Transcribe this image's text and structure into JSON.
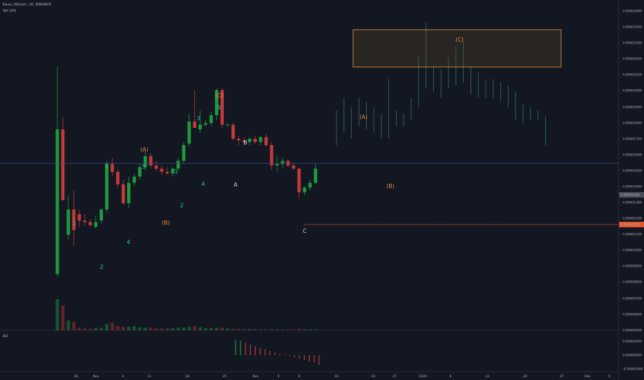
{
  "header": {
    "symbol_line": "Kava / Bitcoin, 1D, BINANCE",
    "volume_label": "Vol (20)",
    "ao_label": "AO"
  },
  "colors": {
    "background": "#131722",
    "grid": "#1f2433",
    "up": "#26a69a",
    "up_body": "#1e9a3c",
    "down": "#c23a3a",
    "forecast": "#2a6b6b",
    "label_teal": "#2ec4b6",
    "label_orange": "#e8893a",
    "label_white": "#d1d4dc",
    "price_line_blue": "#3a4a8a",
    "support_orange": "#e2562a"
  },
  "chart_data": {
    "type": "candlestick",
    "price_axis": {
      "ticks": [
        "0.00003400",
        "0.00003300",
        "0.00002300",
        "0.00002200",
        "0.00002100",
        "0.00002000",
        "0.00001900",
        "0.00001800",
        "0.00001700",
        "0.00001600",
        "0.00001500",
        "0.00001400",
        "0.00001300",
        "0.00001200",
        "0.00001100",
        "0.00001000",
        "0.00000900",
        "0.00000800",
        "0.00000700",
        "0.00000600",
        "0.00000500"
      ],
      "current_price_label": "0.00001284",
      "support_price_label": "0.00001073",
      "current_price": 1.284e-05,
      "support_price": 1.073e-05
    },
    "time_axis": {
      "ticks": [
        "28",
        "Nov",
        "4",
        "11",
        "18",
        "25",
        "Dec",
        "5",
        "9",
        "16",
        "23",
        "27",
        "2020",
        "6",
        "13",
        "20",
        "27",
        "Feb",
        "5"
      ]
    },
    "candles": [
      {
        "o": 5.8e-06,
        "h": 1.9e-05,
        "l": 5.6e-06,
        "c": 1.5e-05
      },
      {
        "o": 1.5e-05,
        "h": 1.58e-05,
        "l": 1.05e-05,
        "c": 1.05e-05
      },
      {
        "o": 8.3e-06,
        "h": 1.08e-05,
        "l": 8e-06,
        "c": 9.9e-06
      },
      {
        "o": 9.9e-06,
        "h": 1.11e-05,
        "l": 7.6e-06,
        "c": 8.6e-06
      },
      {
        "o": 9.6e-06,
        "h": 9.9e-06,
        "l": 8.8e-06,
        "c": 9.2e-06
      },
      {
        "o": 9.2e-06,
        "h": 9.6e-06,
        "l": 8.9e-06,
        "c": 9.1e-06
      },
      {
        "o": 9.1e-06,
        "h": 9.3e-06,
        "l": 8.8e-06,
        "c": 8.9e-06
      },
      {
        "o": 8.8e-06,
        "h": 9.5e-06,
        "l": 8.7e-06,
        "c": 9.1e-06
      },
      {
        "o": 9.2e-06,
        "h": 1e-05,
        "l": 9e-06,
        "c": 9.9e-06
      },
      {
        "o": 9.9e-06,
        "h": 1.3e-05,
        "l": 9.7e-06,
        "c": 1.28e-05
      },
      {
        "o": 1.28e-05,
        "h": 1.32e-05,
        "l": 1.2e-05,
        "c": 1.23e-05
      },
      {
        "o": 1.23e-05,
        "h": 1.25e-05,
        "l": 1.13e-05,
        "c": 1.15e-05
      },
      {
        "o": 1.15e-05,
        "h": 1.18e-05,
        "l": 1.02e-05,
        "c": 1.03e-05
      },
      {
        "o": 1.03e-05,
        "h": 1.2e-05,
        "l": 1e-05,
        "c": 1.16e-05
      },
      {
        "o": 1.16e-05,
        "h": 1.22e-05,
        "l": 1.14e-05,
        "c": 1.2e-05
      },
      {
        "o": 1.2e-05,
        "h": 1.28e-05,
        "l": 1.18e-05,
        "c": 1.26e-05
      },
      {
        "o": 1.26e-05,
        "h": 1.36e-05,
        "l": 1.24e-05,
        "c": 1.33e-05
      },
      {
        "o": 1.33e-05,
        "h": 1.35e-05,
        "l": 1.25e-05,
        "c": 1.27e-05
      },
      {
        "o": 1.27e-05,
        "h": 1.3e-05,
        "l": 1.23e-05,
        "c": 1.25e-05
      },
      {
        "o": 1.25e-05,
        "h": 1.27e-05,
        "l": 1.21e-05,
        "c": 1.23e-05
      },
      {
        "o": 1.23e-05,
        "h": 1.26e-05,
        "l": 1.21e-05,
        "c": 1.22e-05
      },
      {
        "o": 1.22e-05,
        "h": 1.26e-05,
        "l": 1.2e-05,
        "c": 1.25e-05
      },
      {
        "o": 1.25e-05,
        "h": 1.32e-05,
        "l": 1.23e-05,
        "c": 1.3e-05
      },
      {
        "o": 1.3e-05,
        "h": 1.42e-05,
        "l": 1.28e-05,
        "c": 1.4e-05
      },
      {
        "o": 1.41e-05,
        "h": 1.6e-05,
        "l": 1.39e-05,
        "c": 1.55e-05
      },
      {
        "o": 1.55e-05,
        "h": 1.75e-05,
        "l": 1.52e-05,
        "c": 1.51e-05
      },
      {
        "o": 1.5e-05,
        "h": 1.62e-05,
        "l": 1.48e-05,
        "c": 1.53e-05
      },
      {
        "o": 1.53e-05,
        "h": 1.56e-05,
        "l": 1.52e-05,
        "c": 1.54e-05
      },
      {
        "o": 1.54e-05,
        "h": 1.61e-05,
        "l": 1.52e-05,
        "c": 1.59e-05
      },
      {
        "o": 1.59e-05,
        "h": 1.76e-05,
        "l": 1.56e-05,
        "c": 1.75e-05
      },
      {
        "o": 1.75e-05,
        "h": 1.76e-05,
        "l": 1.51e-05,
        "c": 1.53e-05
      },
      {
        "o": 1.53e-05,
        "h": 1.54e-05,
        "l": 1.52e-05,
        "c": 1.53e-05
      },
      {
        "o": 1.53e-05,
        "h": 1.54e-05,
        "l": 1.43e-05,
        "c": 1.44e-05
      },
      {
        "o": 1.44e-05,
        "h": 1.46e-05,
        "l": 1.4e-05,
        "c": 1.43e-05
      },
      {
        "o": 1.43e-05,
        "h": 1.45e-05,
        "l": 1.4e-05,
        "c": 1.42e-05
      },
      {
        "o": 1.42e-05,
        "h": 1.45e-05,
        "l": 1.4e-05,
        "c": 1.44e-05
      },
      {
        "o": 1.44e-05,
        "h": 1.46e-05,
        "l": 1.41e-05,
        "c": 1.42e-05
      },
      {
        "o": 1.42e-05,
        "h": 1.46e-05,
        "l": 1.4e-05,
        "c": 1.45e-05
      },
      {
        "o": 1.45e-05,
        "h": 1.47e-05,
        "l": 1.39e-05,
        "c": 1.4e-05
      },
      {
        "o": 1.4e-05,
        "h": 1.42e-05,
        "l": 1.24e-05,
        "c": 1.27e-05
      },
      {
        "o": 1.27e-05,
        "h": 1.33e-05,
        "l": 1.23e-05,
        "c": 1.28e-05
      },
      {
        "o": 1.28e-05,
        "h": 1.32e-05,
        "l": 1.25e-05,
        "c": 1.3e-05
      },
      {
        "o": 1.3e-05,
        "h": 1.31e-05,
        "l": 1.26e-05,
        "c": 1.27e-05
      },
      {
        "o": 1.27e-05,
        "h": 1.29e-05,
        "l": 1.24e-05,
        "c": 1.25e-05
      },
      {
        "o": 1.25e-05,
        "h": 1.26e-05,
        "l": 1.06e-05,
        "c": 1.1e-05
      },
      {
        "o": 1.1e-05,
        "h": 1.14e-05,
        "l": 1.08e-05,
        "c": 1.13e-05
      },
      {
        "o": 1.13e-05,
        "h": 1.18e-05,
        "l": 1.11e-05,
        "c": 1.16e-05
      },
      {
        "o": 1.16e-05,
        "h": 1.28e-05,
        "l": 1.15e-05,
        "c": 1.25e-05
      }
    ],
    "volume": [
      0.75,
      0.6,
      0.24,
      0.2,
      0.06,
      0.05,
      0.04,
      0.05,
      0.06,
      0.15,
      0.18,
      0.1,
      0.08,
      0.09,
      0.1,
      0.07,
      0.06,
      0.06,
      0.05,
      0.04,
      0.05,
      0.05,
      0.06,
      0.07,
      0.08,
      0.1,
      0.07,
      0.05,
      0.05,
      0.06,
      0.06,
      0.04,
      0.04,
      0.03,
      0.03,
      0.03,
      0.03,
      0.02,
      0.02,
      0.03,
      0.02,
      0.02,
      0.02,
      0.02,
      0.03,
      0.02,
      0.02,
      0.02
    ],
    "forecast_bars": [
      {
        "h": 1.62e-05,
        "l": 1.4e-05
      },
      {
        "h": 1.7e-05,
        "l": 1.48e-05
      },
      {
        "h": 1.64e-05,
        "l": 1.44e-05
      },
      {
        "h": 1.7e-05,
        "l": 1.52e-05
      },
      {
        "h": 1.68e-05,
        "l": 1.5e-05
      },
      {
        "h": 1.64e-05,
        "l": 1.48e-05
      },
      {
        "h": 1.6e-05,
        "l": 1.44e-05
      },
      {
        "h": 1.82e-05,
        "l": 1.44e-05
      },
      {
        "h": 1.62e-05,
        "l": 1.52e-05
      },
      {
        "h": 1.6e-05,
        "l": 1.52e-05
      },
      {
        "h": 1.7e-05,
        "l": 1.56e-05
      },
      {
        "h": 1.96e-05,
        "l": 1.64e-05
      },
      {
        "h": 2.18e-05,
        "l": 1.76e-05
      },
      {
        "h": 1.9e-05,
        "l": 1.74e-05
      },
      {
        "h": 1.88e-05,
        "l": 1.7e-05
      },
      {
        "h": 1.96e-05,
        "l": 1.76e-05
      },
      {
        "h": 2.03e-05,
        "l": 1.78e-05
      },
      {
        "h": 2.06e-05,
        "l": 1.8e-05
      },
      {
        "h": 1.9e-05,
        "l": 1.72e-05
      },
      {
        "h": 1.86e-05,
        "l": 1.7e-05
      },
      {
        "h": 1.82e-05,
        "l": 1.7e-05
      },
      {
        "h": 1.82e-05,
        "l": 1.7e-05
      },
      {
        "h": 1.8e-05,
        "l": 1.68e-05
      },
      {
        "h": 1.78e-05,
        "l": 1.64e-05
      },
      {
        "h": 1.74e-05,
        "l": 1.56e-05
      },
      {
        "h": 1.66e-05,
        "l": 1.54e-05
      },
      {
        "h": 1.64e-05,
        "l": 1.56e-05
      },
      {
        "h": 1.62e-05,
        "l": 1.56e-05
      },
      {
        "h": 1.58e-05,
        "l": 1.4e-05
      }
    ],
    "ao_histogram": [
      0.8,
      0.75,
      0.65,
      0.55,
      0.45,
      0.38,
      0.3,
      0.22,
      0.15,
      0.08,
      0.03,
      -0.05,
      -0.12,
      -0.18,
      -0.25,
      -0.32,
      -0.38,
      -0.5
    ],
    "ao_axis": {
      "ticks": [
        "0.00002000",
        "0.00000000",
        "-0.00002000"
      ]
    },
    "target_box_label": "(C)",
    "wave_labels": [
      {
        "text": "1",
        "color": "teal"
      },
      {
        "text": "2",
        "color": "teal"
      },
      {
        "text": "3",
        "color": "teal"
      },
      {
        "text": "4",
        "color": "teal"
      },
      {
        "text": "5",
        "color": "teal"
      },
      {
        "text": "(A)",
        "color": "orange"
      },
      {
        "text": "(B)",
        "color": "orange"
      },
      {
        "text": "1",
        "color": "teal"
      },
      {
        "text": "2",
        "color": "teal"
      },
      {
        "text": "3",
        "color": "teal"
      },
      {
        "text": "4",
        "color": "teal"
      },
      {
        "text": "5",
        "color": "teal"
      },
      {
        "text": "(C)",
        "color": "orange"
      },
      {
        "text": "A",
        "color": "white"
      },
      {
        "text": "B",
        "color": "white"
      },
      {
        "text": "C",
        "color": "white"
      },
      {
        "text": "(A)",
        "color": "orange"
      },
      {
        "text": "(B)",
        "color": "orange"
      }
    ]
  }
}
